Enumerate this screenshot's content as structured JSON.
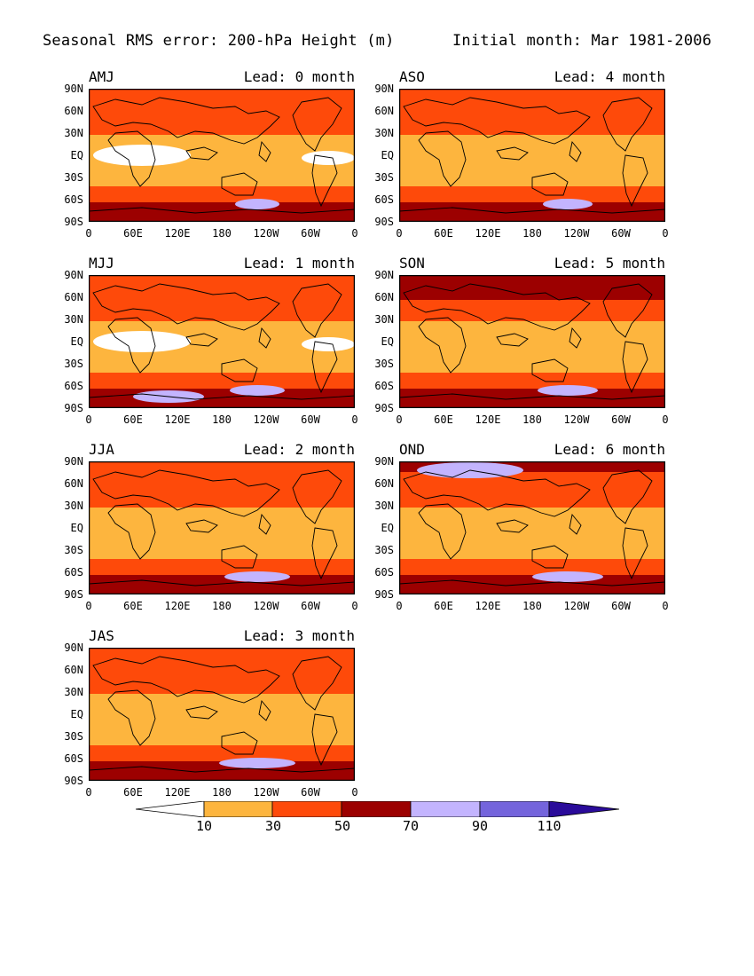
{
  "title_left": "Seasonal RMS error: 200-hPa Height (m)",
  "title_right": "Initial month: Mar 1981-2006",
  "lat_labels": [
    "90N",
    "60N",
    "30N",
    "EQ",
    "30S",
    "60S",
    "90S"
  ],
  "lon_labels": [
    "0",
    "60E",
    "120E",
    "180",
    "120W",
    "60W",
    "0"
  ],
  "panels": [
    {
      "season": "AMJ",
      "lead": "Lead: 0 month"
    },
    {
      "season": "ASO",
      "lead": "Lead: 4 month"
    },
    {
      "season": "MJJ",
      "lead": "Lead: 1 month"
    },
    {
      "season": "SON",
      "lead": "Lead: 5 month"
    },
    {
      "season": "JJA",
      "lead": "Lead: 2 month"
    },
    {
      "season": "OND",
      "lead": "Lead: 6 month"
    },
    {
      "season": "JAS",
      "lead": "Lead: 3 month"
    }
  ],
  "colorbar": {
    "labels": [
      "10",
      "30",
      "50",
      "70",
      "90",
      "110"
    ],
    "colors": {
      "below_10": "#ffffff",
      "10_30": "#fdb53e",
      "30_50": "#fe4a0a",
      "50_70": "#9c0000",
      "70_90": "#c3b4fe",
      "90_110": "#7464dc",
      "above_110": "#2a0b9a"
    }
  }
}
